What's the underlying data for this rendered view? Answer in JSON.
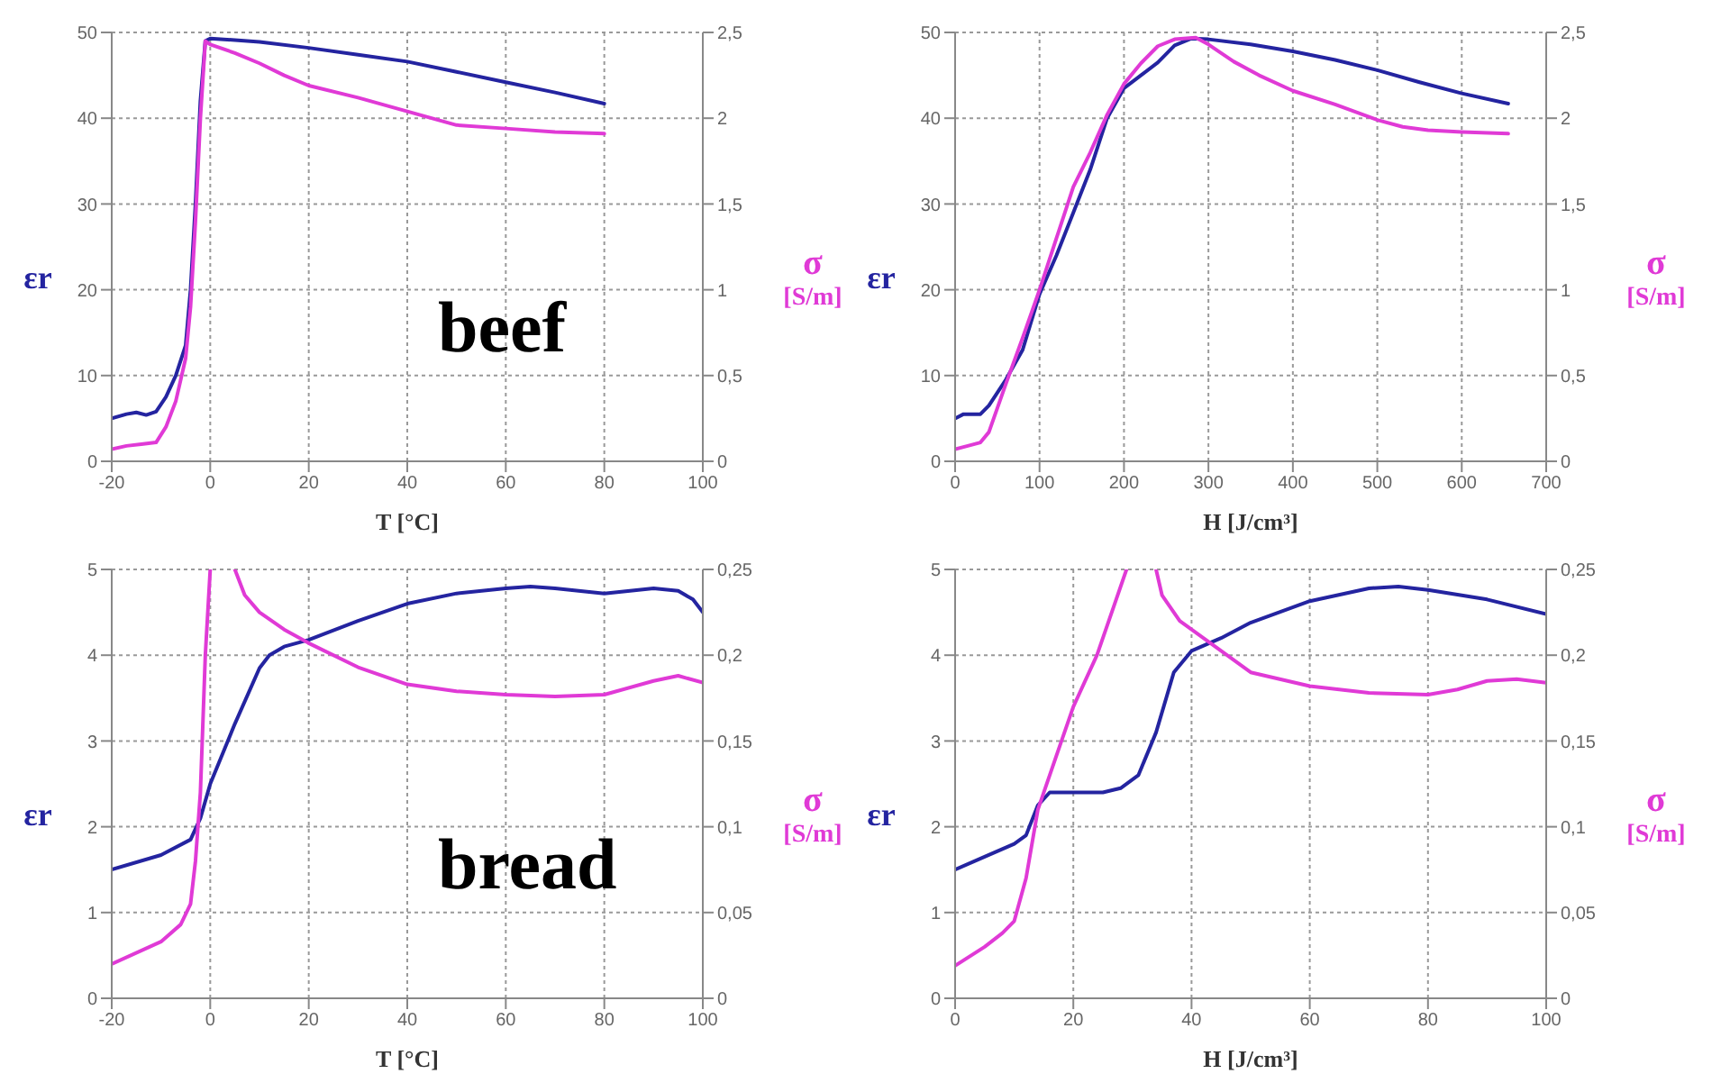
{
  "chart_data": [
    {
      "type": "line",
      "xlabel": "T  [°C]",
      "ylabel": "εr",
      "y2label": "σ\n[S/m]",
      "annotations": [
        "beef"
      ],
      "grid": true,
      "xlim": [
        -20,
        100
      ],
      "xticks": [
        -20,
        0,
        20,
        40,
        60,
        80,
        100
      ],
      "ylim": [
        0,
        50
      ],
      "yticks": [
        0,
        10,
        20,
        30,
        40,
        50
      ],
      "y2lim": [
        0,
        2.5
      ],
      "y2ticks": [
        0,
        {
          "value": 0.5,
          "label": "0,5"
        },
        1,
        {
          "value": 1.5,
          "label": "1,5"
        },
        2,
        {
          "value": 2.5,
          "label": "2,5"
        }
      ],
      "series": [
        {
          "color": "#2424a0",
          "x": [
            -20,
            -17,
            -15,
            -13,
            -11,
            -9,
            -7,
            -5,
            -4,
            -3,
            -2,
            -1,
            0,
            10,
            20,
            30,
            40,
            50,
            60,
            70,
            80
          ],
          "values": [
            5,
            5.5,
            5.7,
            5.4,
            5.8,
            7.5,
            10,
            13.5,
            20,
            30,
            42,
            49,
            49.3,
            48.9,
            48.2,
            47.4,
            46.6,
            45.4,
            44.2,
            43,
            41.7
          ]
        },
        {
          "color": "#e03ad6",
          "axis": "y2",
          "x": [
            -20,
            -17,
            -14,
            -11,
            -9,
            -7,
            -5,
            -4,
            -3,
            -2,
            -1,
            0,
            5,
            10,
            15,
            20,
            30,
            40,
            50,
            60,
            70,
            80
          ],
          "values": [
            0.07,
            0.09,
            0.1,
            0.11,
            0.2,
            0.35,
            0.6,
            0.9,
            1.4,
            2,
            2.45,
            2.43,
            2.38,
            2.32,
            2.25,
            2.19,
            2.12,
            2.04,
            1.96,
            1.94,
            1.92,
            1.91
          ]
        }
      ]
    },
    {
      "type": "line",
      "xlabel": "H  [J/cm³]",
      "ylabel": "εr",
      "y2label": "σ\n[S/m]",
      "grid": true,
      "xlim": [
        0,
        700
      ],
      "xticks": [
        0,
        100,
        200,
        300,
        400,
        500,
        600,
        700
      ],
      "ylim": [
        0,
        50
      ],
      "yticks": [
        0,
        10,
        20,
        30,
        40,
        50
      ],
      "y2lim": [
        0,
        2.5
      ],
      "y2ticks": [
        0,
        {
          "value": 0.5,
          "label": "0,5"
        },
        1,
        {
          "value": 1.5,
          "label": "1,5"
        },
        2,
        {
          "value": 2.5,
          "label": "2,5"
        }
      ],
      "series": [
        {
          "color": "#2424a0",
          "x": [
            0,
            10,
            30,
            40,
            60,
            80,
            100,
            120,
            140,
            160,
            180,
            200,
            220,
            240,
            260,
            280,
            300,
            350,
            400,
            450,
            500,
            550,
            600,
            655
          ],
          "values": [
            5,
            5.5,
            5.5,
            6.5,
            9.5,
            13,
            19.5,
            24,
            29,
            34,
            40,
            43.5,
            45,
            46.5,
            48.5,
            49.3,
            49.2,
            48.6,
            47.8,
            46.8,
            45.6,
            44.2,
            42.9,
            41.7
          ]
        },
        {
          "color": "#e03ad6",
          "axis": "y2",
          "x": [
            0,
            15,
            30,
            40,
            60,
            80,
            100,
            120,
            140,
            160,
            180,
            200,
            220,
            240,
            260,
            285,
            300,
            330,
            360,
            400,
            450,
            500,
            530,
            560,
            600,
            655
          ],
          "values": [
            0.07,
            0.09,
            0.11,
            0.17,
            0.45,
            0.72,
            1,
            1.3,
            1.6,
            1.8,
            2.02,
            2.2,
            2.32,
            2.42,
            2.46,
            2.47,
            2.43,
            2.33,
            2.25,
            2.16,
            2.08,
            1.99,
            1.95,
            1.93,
            1.92,
            1.91
          ]
        }
      ]
    },
    {
      "type": "line",
      "xlabel": "T  [°C]",
      "ylabel": "εr",
      "y2label": "σ\n[S/m]",
      "annotations": [
        "bread"
      ],
      "grid": true,
      "xlim": [
        -20,
        100
      ],
      "xticks": [
        -20,
        0,
        20,
        40,
        60,
        80,
        100
      ],
      "ylim": [
        0,
        5
      ],
      "yticks": [
        0,
        1,
        2,
        3,
        4,
        5
      ],
      "y2lim": [
        0,
        0.25
      ],
      "y2ticks": [
        0,
        {
          "value": 0.05,
          "label": "0,05"
        },
        {
          "value": 0.1,
          "label": "0,1"
        },
        {
          "value": 0.15,
          "label": "0,15"
        },
        {
          "value": 0.2,
          "label": "0,2"
        },
        {
          "value": 0.25,
          "label": "0,25"
        }
      ],
      "series": [
        {
          "color": "#2424a0",
          "x": [
            -20,
            -10,
            -4,
            -2,
            0,
            5,
            10,
            12,
            15,
            20,
            30,
            40,
            50,
            60,
            65,
            70,
            80,
            90,
            95,
            98,
            100
          ],
          "values": [
            1.5,
            1.67,
            1.85,
            2.1,
            2.5,
            3.2,
            3.85,
            4,
            4.1,
            4.18,
            4.4,
            4.6,
            4.72,
            4.78,
            4.8,
            4.78,
            4.72,
            4.78,
            4.75,
            4.65,
            4.5
          ]
        },
        {
          "color": "#e03ad6",
          "axis": "y2",
          "x": [
            -20,
            -10,
            -6,
            -4,
            -3,
            -2,
            -1,
            0,
            2.5,
            5,
            7,
            10,
            15,
            20,
            30,
            40,
            50,
            60,
            70,
            80,
            90,
            95,
            100
          ],
          "values": [
            0.02,
            0.033,
            0.043,
            0.055,
            0.08,
            0.12,
            0.2,
            0.25,
            null,
            0.25,
            0.235,
            0.225,
            0.215,
            0.207,
            0.193,
            0.183,
            0.179,
            0.177,
            0.176,
            0.177,
            0.185,
            0.188,
            0.184
          ]
        }
      ]
    },
    {
      "type": "line",
      "xlabel": "H  [J/cm³]",
      "ylabel": "εr",
      "y2label": "σ\n[S/m]",
      "grid": true,
      "xlim": [
        0,
        100
      ],
      "xticks": [
        0,
        20,
        40,
        60,
        80,
        100
      ],
      "ylim": [
        0,
        5
      ],
      "yticks": [
        0,
        1,
        2,
        3,
        4,
        5
      ],
      "y2lim": [
        0,
        0.25
      ],
      "y2ticks": [
        0,
        {
          "value": 0.05,
          "label": "0,05"
        },
        {
          "value": 0.1,
          "label": "0,1"
        },
        {
          "value": 0.15,
          "label": "0,15"
        },
        {
          "value": 0.2,
          "label": "0,2"
        },
        {
          "value": 0.25,
          "label": "0,25"
        }
      ],
      "series": [
        {
          "color": "#2424a0",
          "x": [
            0,
            5,
            10,
            12,
            14,
            16,
            20,
            25,
            28,
            31,
            34,
            37,
            40,
            45,
            50,
            60,
            70,
            75,
            80,
            90,
            100
          ],
          "values": [
            1.5,
            1.65,
            1.8,
            1.9,
            2.25,
            2.4,
            2.4,
            2.4,
            2.45,
            2.6,
            3.1,
            3.8,
            4.05,
            4.2,
            4.38,
            4.63,
            4.78,
            4.8,
            4.76,
            4.65,
            4.48
          ]
        },
        {
          "color": "#e03ad6",
          "axis": "y2",
          "x": [
            0,
            5,
            8,
            10,
            12,
            14,
            17,
            20,
            24,
            27,
            29,
            31.5,
            34,
            35,
            38,
            42,
            50,
            60,
            70,
            80,
            85,
            90,
            95,
            100
          ],
          "values": [
            0.019,
            0.03,
            0.038,
            0.045,
            0.07,
            0.11,
            0.14,
            0.17,
            0.2,
            0.23,
            0.25,
            null,
            0.25,
            0.235,
            0.22,
            0.21,
            0.19,
            0.182,
            0.178,
            0.177,
            0.18,
            0.185,
            0.186,
            0.184
          ]
        }
      ]
    }
  ]
}
